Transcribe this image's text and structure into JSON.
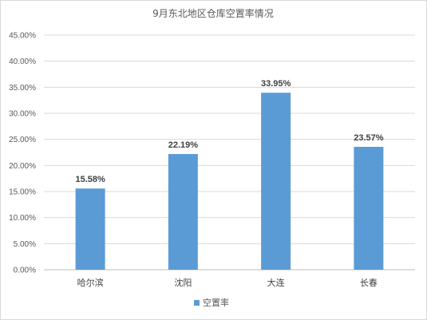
{
  "chart_data": {
    "type": "bar",
    "title": "9月东北地区仓库空置率情况",
    "categories": [
      "哈尔滨",
      "沈阳",
      "大连",
      "长春"
    ],
    "series": [
      {
        "name": "空置率",
        "values": [
          15.58,
          22.19,
          33.95,
          23.57
        ],
        "color": "#5B9BD5"
      }
    ],
    "data_labels": [
      "15.58%",
      "22.19%",
      "33.95%",
      "23.57%"
    ],
    "y_ticks": [
      "0.00%",
      "5.00%",
      "10.00%",
      "15.00%",
      "20.00%",
      "25.00%",
      "30.00%",
      "35.00%",
      "40.00%",
      "45.00%"
    ],
    "ylim": [
      0,
      45
    ],
    "grid": true,
    "legend_position": "bottom",
    "xlabel": "",
    "ylabel": ""
  }
}
